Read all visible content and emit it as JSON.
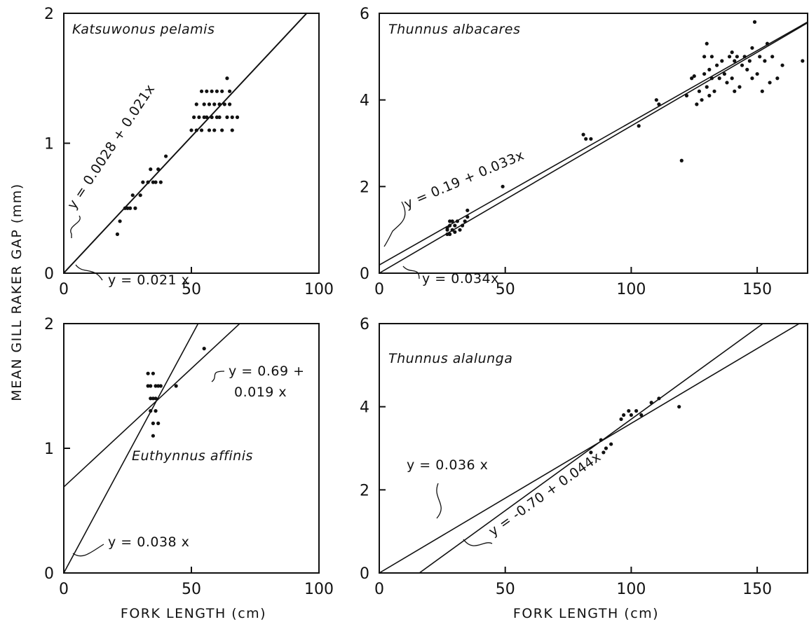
{
  "figure": {
    "ylabel": "MEAN GILL RAKER GAP (mm)",
    "xlabel": "FORK LENGTH (cm)"
  },
  "chart_data": [
    {
      "type": "scatter",
      "title": "Katsuwonus pelamis",
      "xlabel": "",
      "ylabel": "",
      "xlim": [
        0,
        100
      ],
      "ylim": [
        0,
        2
      ],
      "xticks": [
        0,
        50,
        100
      ],
      "yticks": [
        0,
        1,
        2
      ],
      "fits": [
        {
          "label": "y = 0.0028 + 0.021x",
          "intercept": 0.0028,
          "slope": 0.021
        },
        {
          "label": "y = 0.021 x",
          "intercept": 0,
          "slope": 0.021
        }
      ],
      "points": [
        [
          21,
          0.3
        ],
        [
          22,
          0.4
        ],
        [
          24,
          0.5
        ],
        [
          25,
          0.5
        ],
        [
          26,
          0.5
        ],
        [
          27,
          0.6
        ],
        [
          28,
          0.5
        ],
        [
          30,
          0.6
        ],
        [
          31,
          0.7
        ],
        [
          33,
          0.7
        ],
        [
          34,
          0.8
        ],
        [
          35,
          0.7
        ],
        [
          36,
          0.7
        ],
        [
          37,
          0.8
        ],
        [
          38,
          0.7
        ],
        [
          40,
          0.9
        ],
        [
          50,
          1.1
        ],
        [
          51,
          1.2
        ],
        [
          52,
          1.1
        ],
        [
          52,
          1.3
        ],
        [
          53,
          1.2
        ],
        [
          54,
          1.4
        ],
        [
          54,
          1.1
        ],
        [
          55,
          1.2
        ],
        [
          55,
          1.3
        ],
        [
          56,
          1.4
        ],
        [
          56,
          1.2
        ],
        [
          57,
          1.1
        ],
        [
          57,
          1.3
        ],
        [
          58,
          1.2
        ],
        [
          58,
          1.4
        ],
        [
          59,
          1.1
        ],
        [
          59,
          1.3
        ],
        [
          60,
          1.2
        ],
        [
          60,
          1.4
        ],
        [
          61,
          1.3
        ],
        [
          61,
          1.2
        ],
        [
          62,
          1.1
        ],
        [
          62,
          1.4
        ],
        [
          63,
          1.3
        ],
        [
          64,
          1.2
        ],
        [
          64,
          1.5
        ],
        [
          65,
          1.3
        ],
        [
          65,
          1.4
        ],
        [
          66,
          1.1
        ],
        [
          66,
          1.2
        ],
        [
          68,
          1.2
        ]
      ]
    },
    {
      "type": "scatter",
      "title": "Thunnus albacares",
      "xlabel": "",
      "ylabel": "",
      "xlim": [
        0,
        170
      ],
      "ylim": [
        0,
        6
      ],
      "xticks": [
        0,
        50,
        100,
        150
      ],
      "yticks": [
        0,
        2,
        4,
        6
      ],
      "fits": [
        {
          "label": "y = 0.19 + 0.033x",
          "intercept": 0.19,
          "slope": 0.033
        },
        {
          "label": "y = 0.034x",
          "intercept": 0,
          "slope": 0.034
        }
      ],
      "points": [
        [
          27,
          0.9
        ],
        [
          27,
          1.0
        ],
        [
          28,
          1.1
        ],
        [
          28,
          0.9
        ],
        [
          29,
          1.0
        ],
        [
          29,
          1.2
        ],
        [
          30,
          1.1
        ],
        [
          30,
          0.95
        ],
        [
          31,
          1.2
        ],
        [
          32,
          1.0
        ],
        [
          33,
          1.1
        ],
        [
          34,
          1.2
        ],
        [
          35,
          1.3
        ],
        [
          35,
          1.45
        ],
        [
          27,
          1.05
        ],
        [
          28,
          1.2
        ],
        [
          49,
          2.0
        ],
        [
          81,
          3.2
        ],
        [
          82,
          3.1
        ],
        [
          84,
          3.1
        ],
        [
          103,
          3.4
        ],
        [
          110,
          4.0
        ],
        [
          111,
          3.9
        ],
        [
          120,
          2.6
        ],
        [
          122,
          4.1
        ],
        [
          124,
          4.5
        ],
        [
          125,
          4.55
        ],
        [
          126,
          3.9
        ],
        [
          127,
          4.2
        ],
        [
          128,
          4.0
        ],
        [
          129,
          4.6
        ],
        [
          129,
          5.0
        ],
        [
          130,
          4.3
        ],
        [
          130,
          5.3
        ],
        [
          131,
          4.7
        ],
        [
          131,
          4.1
        ],
        [
          132,
          5.0
        ],
        [
          132,
          4.5
        ],
        [
          133,
          4.2
        ],
        [
          134,
          4.8
        ],
        [
          135,
          4.5
        ],
        [
          136,
          4.9
        ],
        [
          137,
          4.6
        ],
        [
          138,
          4.4
        ],
        [
          139,
          5.0
        ],
        [
          140,
          5.1
        ],
        [
          140,
          4.5
        ],
        [
          141,
          4.2
        ],
        [
          141,
          4.9
        ],
        [
          142,
          5.0
        ],
        [
          143,
          4.3
        ],
        [
          144,
          4.8
        ],
        [
          145,
          5.0
        ],
        [
          146,
          4.7
        ],
        [
          147,
          4.9
        ],
        [
          148,
          5.2
        ],
        [
          148,
          4.5
        ],
        [
          149,
          5.8
        ],
        [
          150,
          4.6
        ],
        [
          151,
          5.0
        ],
        [
          152,
          4.2
        ],
        [
          153,
          4.9
        ],
        [
          154,
          5.3
        ],
        [
          155,
          4.4
        ],
        [
          156,
          5.0
        ],
        [
          158,
          4.5
        ],
        [
          160,
          4.8
        ],
        [
          168,
          4.9
        ]
      ]
    },
    {
      "type": "scatter",
      "title": "Euthynnus affinis",
      "xlabel": "",
      "ylabel": "",
      "xlim": [
        0,
        100
      ],
      "ylim": [
        0,
        2
      ],
      "xticks": [
        0,
        50,
        100
      ],
      "yticks": [
        0,
        1,
        2
      ],
      "fits": [
        {
          "label": "y = 0.69 + 0.019 x",
          "intercept": 0.69,
          "slope": 0.019
        },
        {
          "label": "y = 0.038 x",
          "intercept": 0,
          "slope": 0.038
        }
      ],
      "points": [
        [
          33,
          1.5
        ],
        [
          33,
          1.6
        ],
        [
          34,
          1.4
        ],
        [
          34,
          1.5
        ],
        [
          34,
          1.3
        ],
        [
          35,
          1.6
        ],
        [
          35,
          1.4
        ],
        [
          35,
          1.2
        ],
        [
          35,
          1.1
        ],
        [
          36,
          1.5
        ],
        [
          36,
          1.3
        ],
        [
          36,
          1.4
        ],
        [
          37,
          1.5
        ],
        [
          37,
          1.2
        ],
        [
          38,
          1.5
        ],
        [
          44,
          1.5
        ],
        [
          55,
          1.8
        ]
      ]
    },
    {
      "type": "scatter",
      "title": "Thunnus alalunga",
      "xlabel": "",
      "ylabel": "",
      "xlim": [
        0,
        170
      ],
      "ylim": [
        0,
        6
      ],
      "xticks": [
        0,
        50,
        100,
        150
      ],
      "yticks": [
        0,
        2,
        4,
        6
      ],
      "fits": [
        {
          "label": "y = 0.036 x",
          "intercept": 0,
          "slope": 0.036
        },
        {
          "label": "y = -0.70 + 0.044x",
          "intercept": -0.7,
          "slope": 0.044
        }
      ],
      "points": [
        [
          84,
          2.9
        ],
        [
          88,
          3.2
        ],
        [
          89,
          2.9
        ],
        [
          90,
          3.0
        ],
        [
          92,
          3.1
        ],
        [
          96,
          3.7
        ],
        [
          97,
          3.8
        ],
        [
          99,
          3.9
        ],
        [
          100,
          3.8
        ],
        [
          102,
          3.9
        ],
        [
          104,
          3.8
        ],
        [
          108,
          4.1
        ],
        [
          111,
          4.2
        ],
        [
          119,
          4.0
        ]
      ]
    }
  ]
}
